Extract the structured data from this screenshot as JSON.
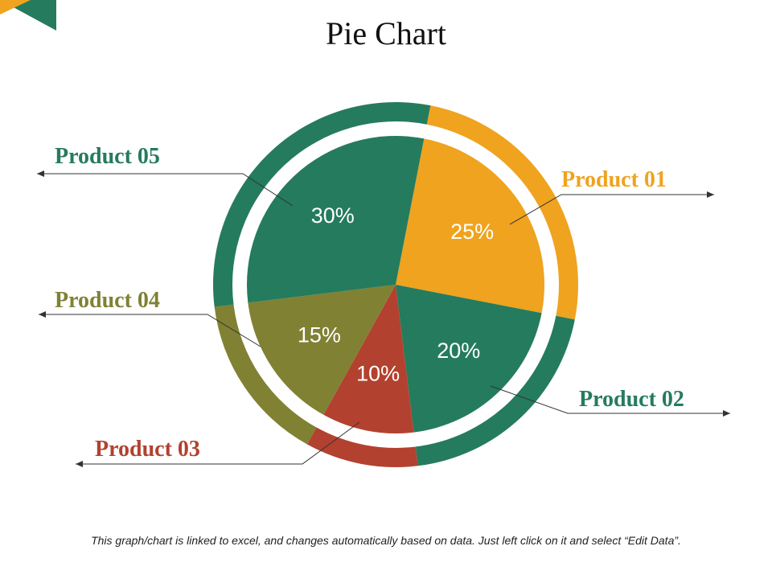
{
  "title": "Pie Chart",
  "footer": "This graph/chart is linked to excel, and changes automatically based on data. Just left click on it and select “Edit Data”.",
  "colors": {
    "green": "#257B5E",
    "orange": "#EFA31F",
    "olive": "#808133",
    "red": "#B3412F",
    "corner_green": "#257B5E",
    "corner_orange": "#EFA31F"
  },
  "chart_data": {
    "type": "pie",
    "title": "Pie Chart",
    "slices": [
      {
        "label": "Product 01",
        "value": 25,
        "value_label": "25%",
        "color": "#EFA31F"
      },
      {
        "label": "Product 02",
        "value": 20,
        "value_label": "20%",
        "color": "#257B5E"
      },
      {
        "label": "Product 03",
        "value": 10,
        "value_label": "10%",
        "color": "#B3412F"
      },
      {
        "label": "Product 04",
        "value": 15,
        "value_label": "15%",
        "color": "#808133"
      },
      {
        "label": "Product 05",
        "value": 30,
        "value_label": "30%",
        "color": "#257B5E"
      }
    ]
  }
}
